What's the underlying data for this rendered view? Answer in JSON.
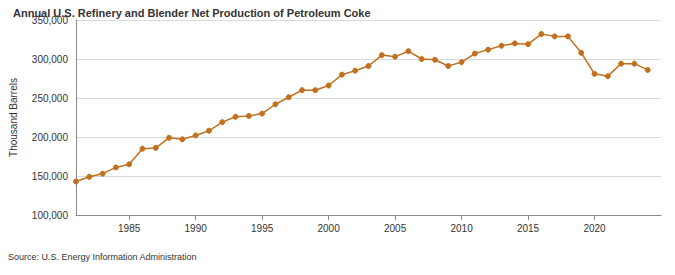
{
  "chart_data": {
    "type": "line",
    "title": "Annual U.S. Refinery and Blender Net Production of Petroleum Coke",
    "y_label": "Thousand Barrels",
    "source": "Source: U.S. Energy Information Administration",
    "x": [
      1981,
      1982,
      1983,
      1984,
      1985,
      1986,
      1987,
      1988,
      1989,
      1990,
      1991,
      1992,
      1993,
      1994,
      1995,
      1996,
      1997,
      1998,
      1999,
      2000,
      2001,
      2002,
      2003,
      2004,
      2005,
      2006,
      2007,
      2008,
      2009,
      2010,
      2011,
      2012,
      2013,
      2014,
      2015,
      2016,
      2017,
      2018,
      2019,
      2020,
      2021,
      2022,
      2023,
      2024
    ],
    "series": [
      {
        "name": "Petroleum Coke",
        "color": "#c0701e",
        "marker": "circle",
        "values": [
          143000,
          149000,
          153000,
          161000,
          165000,
          185000,
          186000,
          199000,
          197000,
          202000,
          208000,
          219000,
          226000,
          227000,
          230000,
          242000,
          251000,
          260000,
          260000,
          266000,
          280000,
          285000,
          291000,
          305000,
          303000,
          310000,
          300000,
          299000,
          291000,
          296000,
          307000,
          312000,
          317000,
          320000,
          319000,
          332000,
          329000,
          329000,
          308000,
          281000,
          278000,
          294000,
          294000,
          286000
        ]
      }
    ],
    "xlim": [
      1981,
      2025
    ],
    "xticks": [
      1985,
      1990,
      1995,
      2000,
      2005,
      2010,
      2015,
      2020
    ],
    "ylim": [
      100000,
      350000
    ],
    "yticks": [
      {
        "value": 100000,
        "label": "100,000"
      },
      {
        "value": 150000,
        "label": "150,000"
      },
      {
        "value": 200000,
        "label": "200,000"
      },
      {
        "value": 250000,
        "label": "250,000"
      },
      {
        "value": 300000,
        "label": "300,000"
      },
      {
        "value": 350000,
        "label": "350,000"
      }
    ],
    "grid": true
  }
}
